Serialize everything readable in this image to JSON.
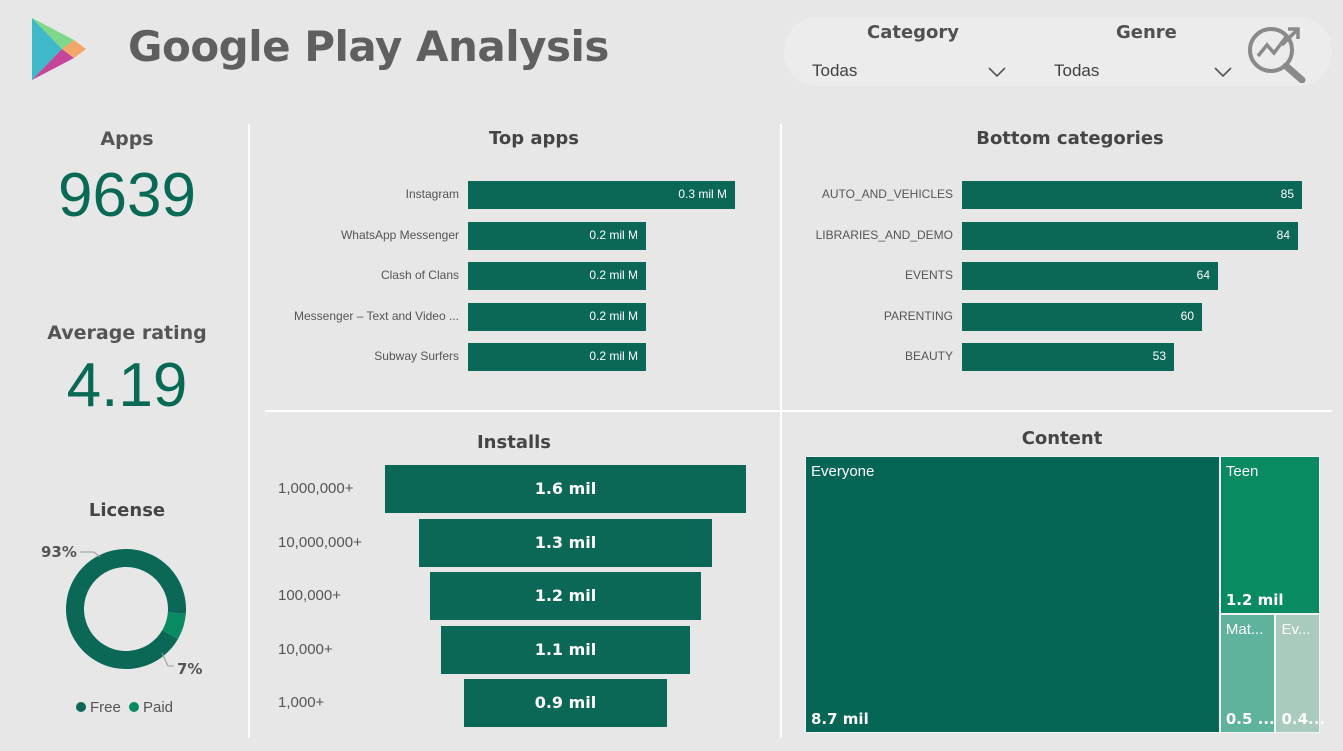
{
  "header": {
    "title": "Google Play Analysis"
  },
  "filters": {
    "category": {
      "label": "Category",
      "value": "Todas"
    },
    "genre": {
      "label": "Genre",
      "value": "Todas"
    }
  },
  "kpis": {
    "apps": {
      "label": "Apps",
      "value": "9639"
    },
    "rating": {
      "label": "Average rating",
      "value": "4.19"
    }
  },
  "colors": {
    "primary": "#0b6857",
    "accent": "#088a62",
    "light1": "#5fb39c",
    "light2": "#a8cbbd",
    "bg": "#e7e7e7"
  },
  "chart_data": [
    {
      "type": "bar",
      "title": "Top apps",
      "categories": [
        "Instagram",
        "WhatsApp Messenger",
        "Clash of Clans",
        "Messenger – Text and Video ...",
        "Subway Surfers"
      ],
      "values": [
        0.3,
        0.2,
        0.2,
        0.2,
        0.2
      ],
      "value_labels": [
        "0.3 mil M",
        "0.2 mil M",
        "0.2 mil M",
        "0.2 mil M",
        "0.2 mil M"
      ],
      "orientation": "horizontal"
    },
    {
      "type": "bar",
      "title": "Bottom categories",
      "categories": [
        "AUTO_AND_VEHICLES",
        "LIBRARIES_AND_DEMO",
        "EVENTS",
        "PARENTING",
        "BEAUTY"
      ],
      "values": [
        85,
        84,
        64,
        60,
        53
      ],
      "value_labels": [
        "85",
        "84",
        "64",
        "60",
        "53"
      ],
      "orientation": "horizontal"
    },
    {
      "type": "bar",
      "title": "Installs",
      "subtype": "funnel",
      "categories": [
        "1,000,000+",
        "10,000,000+",
        "100,000+",
        "10,000+",
        "1,000+"
      ],
      "values": [
        1.6,
        1.3,
        1.2,
        1.1,
        0.9
      ],
      "value_labels": [
        "1.6 mil",
        "1.3 mil",
        "1.2 mil",
        "1.1 mil",
        "0.9 mil"
      ]
    },
    {
      "type": "heatmap",
      "subtype": "treemap",
      "title": "Content",
      "items": [
        {
          "name": "Everyone",
          "value": 8.7,
          "label": "8.7 mil"
        },
        {
          "name": "Teen",
          "value": 1.2,
          "label": "1.2 mil"
        },
        {
          "name": "Mat...",
          "value": 0.5,
          "label": "0.5 ..."
        },
        {
          "name": "Ev...",
          "value": 0.4,
          "label": "0.4..."
        }
      ]
    },
    {
      "type": "pie",
      "subtype": "donut",
      "title": "License",
      "categories": [
        "Free",
        "Paid"
      ],
      "values": [
        93,
        7
      ],
      "value_labels": [
        "93%",
        "7%"
      ]
    }
  ]
}
